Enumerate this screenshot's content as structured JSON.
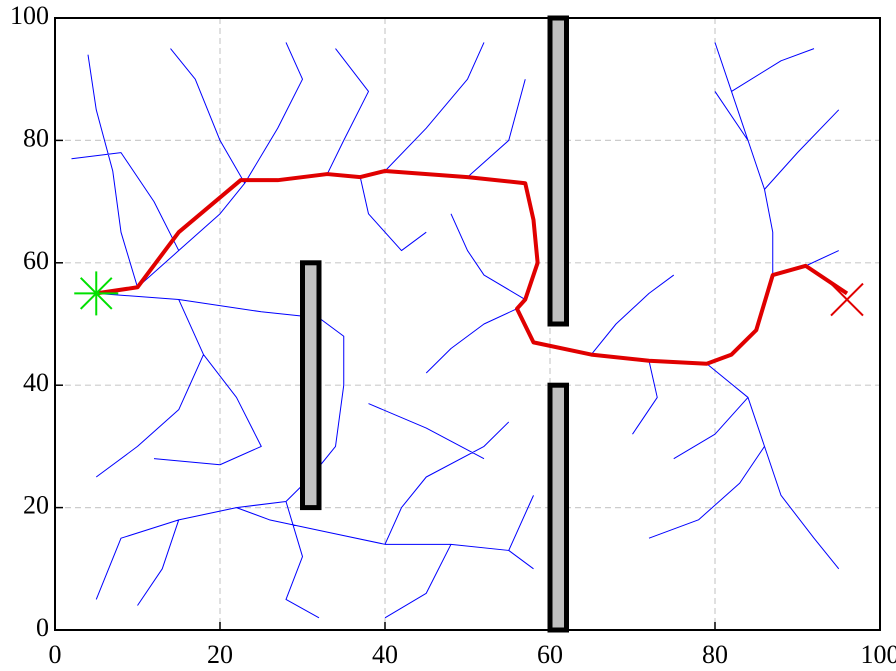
{
  "chart_data": {
    "type": "line",
    "xlim": [
      0,
      100
    ],
    "ylim": [
      0,
      100
    ],
    "xticks": [
      0,
      20,
      40,
      60,
      80,
      100
    ],
    "yticks": [
      0,
      20,
      40,
      60,
      80,
      100
    ],
    "grid": true,
    "obstacles": [
      {
        "x": [
          30,
          32
        ],
        "y": [
          20,
          60
        ],
        "color": "#c0c0c0"
      },
      {
        "x": [
          60,
          62
        ],
        "y": [
          50,
          100
        ],
        "color": "#c0c0c0"
      },
      {
        "x": [
          60,
          62
        ],
        "y": [
          0,
          40
        ],
        "color": "#c0c0c0"
      }
    ],
    "series": [
      {
        "color": "#0000ff",
        "x": [
          5,
          10,
          15,
          20,
          23,
          20,
          17,
          14,
          null,
          10,
          8,
          7,
          5,
          4,
          null,
          15,
          12,
          8,
          2,
          null,
          23,
          27,
          30,
          28,
          null,
          33,
          35,
          38,
          34,
          null,
          40,
          45,
          50,
          52,
          null,
          50,
          55,
          57,
          null,
          37,
          38,
          42,
          45,
          null,
          5,
          15,
          25,
          32,
          35,
          35,
          34,
          31,
          28,
          22,
          15,
          8,
          5,
          null,
          22,
          26,
          33,
          40,
          48,
          55,
          58,
          null,
          28,
          30,
          28,
          32,
          null,
          15,
          13,
          10,
          null,
          15,
          18,
          15,
          10,
          5,
          null,
          18,
          22,
          25,
          20,
          12,
          null,
          40,
          42,
          45,
          52,
          55,
          null,
          48,
          45,
          40,
          null,
          55,
          58,
          null,
          38,
          45,
          52,
          null,
          56,
          52,
          48,
          45,
          null,
          57,
          52,
          50,
          48,
          null,
          65,
          68,
          72,
          75,
          null,
          72,
          73,
          70,
          null,
          79,
          84,
          86,
          83,
          78,
          72,
          null,
          86,
          88,
          92,
          95,
          null,
          84,
          80,
          75,
          null,
          87,
          87,
          86,
          84,
          82,
          80,
          null,
          86,
          90,
          95,
          null,
          84,
          80,
          null,
          82,
          88,
          92,
          null,
          91,
          95
        ],
        "values": [
          55,
          56,
          62,
          68,
          73,
          80,
          90,
          95,
          null,
          56,
          65,
          75,
          85,
          94,
          null,
          62,
          70,
          78,
          77,
          null,
          73,
          82,
          90,
          96,
          null,
          74.5,
          80,
          88,
          95,
          null,
          75,
          82,
          90,
          96,
          null,
          74,
          80,
          90,
          null,
          74,
          68,
          62,
          65,
          null,
          55,
          54,
          52,
          51,
          48,
          40,
          30,
          25,
          21,
          20,
          18,
          15,
          5,
          null,
          20,
          18,
          16,
          14,
          14,
          13,
          10,
          null,
          21,
          12,
          5,
          2,
          null,
          18,
          10,
          4,
          null,
          54,
          45,
          36,
          30,
          25,
          null,
          45,
          38,
          30,
          27,
          28,
          null,
          14,
          20,
          25,
          30,
          34,
          null,
          14,
          6,
          2,
          null,
          13,
          22,
          null,
          37,
          33,
          28,
          null,
          52.5,
          50,
          46,
          42,
          null,
          54,
          58,
          62,
          68,
          null,
          45,
          50,
          55,
          58,
          null,
          44,
          38,
          32,
          null,
          43.5,
          38,
          30,
          24,
          18,
          15,
          null,
          30,
          22,
          15,
          10,
          null,
          38,
          32,
          28,
          null,
          58,
          65,
          72,
          80,
          88,
          96,
          null,
          72,
          78,
          85,
          null,
          80,
          88,
          null,
          88,
          93,
          95,
          null,
          59.5,
          62
        ],
        "width": 1
      },
      {
        "color": "#e00000",
        "x": [
          5,
          10,
          15,
          22.5,
          27,
          33,
          37,
          40,
          50,
          57,
          58,
          58.5,
          57,
          56,
          58,
          65,
          72,
          79,
          82,
          85,
          87,
          91,
          96
        ],
        "values": [
          55,
          56,
          65,
          73.5,
          73.5,
          74.5,
          74,
          75,
          74,
          73,
          67,
          60,
          54,
          52.5,
          47,
          45,
          44,
          43.5,
          45,
          49,
          58,
          59.5,
          55
        ],
        "width": 4
      }
    ],
    "start": {
      "x": 5,
      "y": 55,
      "color": "#00e000"
    },
    "goal": {
      "x": 96,
      "y": 54,
      "color": "#e00000"
    }
  }
}
